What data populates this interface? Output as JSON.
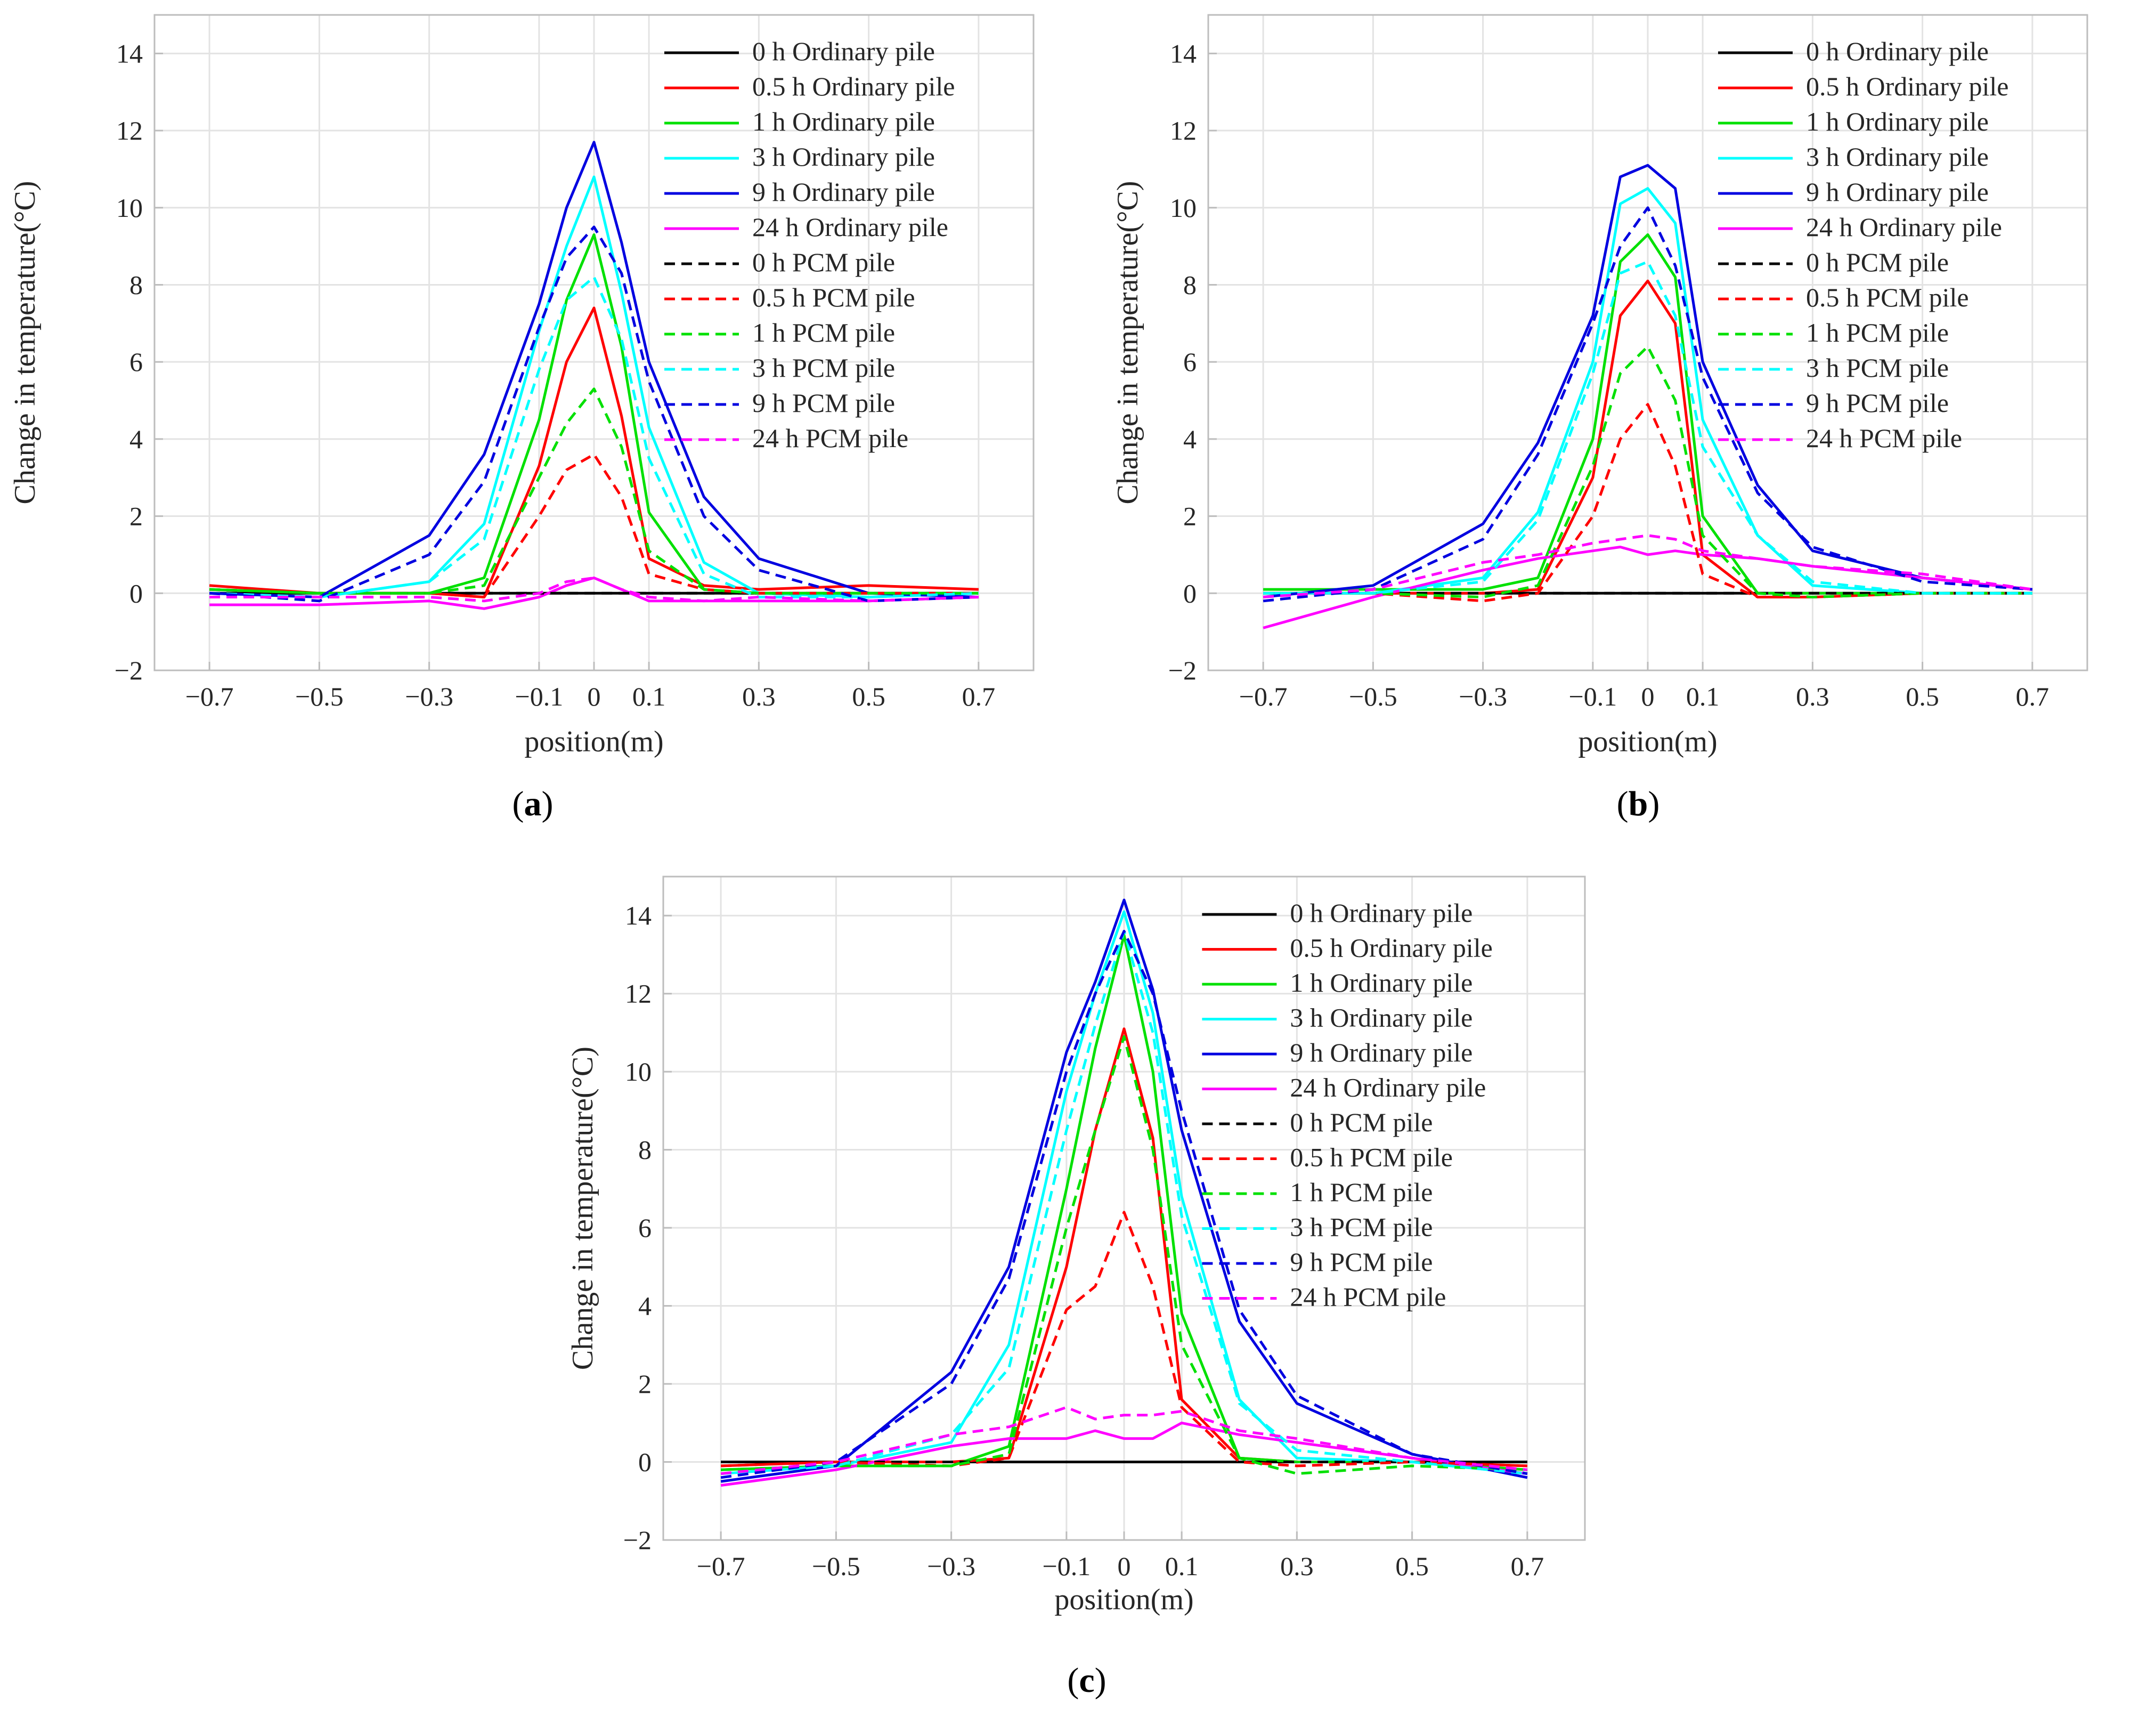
{
  "figure": {
    "captions": [
      {
        "open": "(",
        "letter": "a",
        "close": ")"
      },
      {
        "open": "(",
        "letter": "b",
        "close": ")"
      },
      {
        "open": "(",
        "letter": "c",
        "close": ")"
      }
    ],
    "colors": {
      "0 h": "#000000",
      "0.5 h": "#ff0000",
      "1 h": "#00e000",
      "3 h": "#00ffff",
      "9 h": "#0000e0",
      "24 h": "#ff00ff",
      "grid": "#e3e3e3",
      "axes": "#bdbdbd"
    }
  },
  "chart_data": [
    {
      "type": "line",
      "panel": "a",
      "xlabel": "position(m)",
      "ylabel": "Change in temperature(°C)",
      "xlim": [
        -0.8,
        0.8
      ],
      "ylim": [
        -2,
        15
      ],
      "xticks": [
        -0.7,
        -0.5,
        -0.3,
        -0.1,
        0,
        0.1,
        0.3,
        0.5,
        0.7
      ],
      "xtick_labels": [
        "−0.7",
        "−0.5",
        "−0.3",
        "−0.1",
        "0",
        "0.1",
        "0.3",
        "0.5",
        "0.7"
      ],
      "yticks": [
        -2,
        0,
        2,
        4,
        6,
        8,
        10,
        12,
        14
      ],
      "ytick_labels": [
        "−2",
        "0",
        "2",
        "4",
        "6",
        "8",
        "10",
        "12",
        "14"
      ],
      "grid": true,
      "legend": "top-right",
      "x": [
        -0.7,
        -0.5,
        -0.3,
        -0.2,
        -0.1,
        -0.05,
        0,
        0.05,
        0.1,
        0.2,
        0.3,
        0.5,
        0.7
      ],
      "series": [
        {
          "name": "0 h Ordinary pile",
          "color": "#000000",
          "style": "solid",
          "values": [
            0,
            0,
            0,
            0,
            0,
            0,
            0,
            0,
            0,
            0,
            0,
            0,
            0
          ]
        },
        {
          "name": "0.5 h Ordinary pile",
          "color": "#ff0000",
          "style": "solid",
          "values": [
            0.2,
            0,
            0,
            -0.1,
            3.3,
            6.0,
            7.4,
            4.6,
            0.9,
            0.2,
            0.1,
            0.2,
            0.1
          ]
        },
        {
          "name": "1 h Ordinary pile",
          "color": "#00e000",
          "style": "solid",
          "values": [
            0.1,
            0,
            0,
            0.4,
            4.5,
            7.6,
            9.3,
            6.4,
            2.1,
            0.1,
            0,
            0,
            0
          ]
        },
        {
          "name": "3 h Ordinary pile",
          "color": "#00ffff",
          "style": "solid",
          "values": [
            0,
            -0.1,
            0.3,
            1.8,
            6.8,
            9.0,
            10.8,
            7.8,
            4.3,
            0.8,
            0,
            -0.1,
            0
          ]
        },
        {
          "name": "9 h Ordinary pile",
          "color": "#0000e0",
          "style": "solid",
          "values": [
            0,
            -0.1,
            1.5,
            3.6,
            7.5,
            10.0,
            11.7,
            9.1,
            6.0,
            2.5,
            0.9,
            0,
            -0.1
          ]
        },
        {
          "name": "24 h Ordinary pile",
          "color": "#ff00ff",
          "style": "solid",
          "values": [
            -0.3,
            -0.3,
            -0.2,
            -0.4,
            -0.1,
            0.2,
            0.4,
            0.1,
            -0.2,
            -0.2,
            -0.2,
            -0.2,
            -0.1
          ]
        },
        {
          "name": "0 h PCM pile",
          "color": "#000000",
          "style": "dashed",
          "values": [
            0,
            0,
            0,
            0,
            0,
            0,
            0,
            0,
            0,
            0,
            0,
            0,
            0
          ]
        },
        {
          "name": "0.5 h PCM pile",
          "color": "#ff0000",
          "style": "dashed",
          "values": [
            0.1,
            0,
            0,
            -0.1,
            2.0,
            3.2,
            3.6,
            2.5,
            0.5,
            0.1,
            0,
            0,
            0
          ]
        },
        {
          "name": "1 h PCM pile",
          "color": "#00e000",
          "style": "dashed",
          "values": [
            0.1,
            0,
            0,
            0.2,
            3.0,
            4.4,
            5.3,
            3.8,
            1.1,
            0.1,
            0,
            0,
            0
          ]
        },
        {
          "name": "3 h PCM pile",
          "color": "#00ffff",
          "style": "dashed",
          "values": [
            0,
            -0.1,
            0.3,
            1.4,
            5.8,
            7.6,
            8.2,
            6.6,
            3.5,
            0.5,
            -0.1,
            -0.1,
            0
          ]
        },
        {
          "name": "9 h PCM pile",
          "color": "#0000e0",
          "style": "dashed",
          "values": [
            0,
            -0.2,
            1.0,
            2.9,
            6.9,
            8.7,
            9.5,
            8.3,
            5.5,
            2.0,
            0.6,
            -0.2,
            -0.1
          ]
        },
        {
          "name": "24 h PCM pile",
          "color": "#ff00ff",
          "style": "dashed",
          "values": [
            -0.1,
            -0.1,
            -0.1,
            -0.2,
            0,
            0.3,
            0.4,
            0.1,
            -0.1,
            -0.2,
            -0.1,
            -0.2,
            -0.1
          ]
        }
      ]
    },
    {
      "type": "line",
      "panel": "b",
      "xlabel": "position(m)",
      "ylabel": "Change in temperature(°C)",
      "xlim": [
        -0.8,
        0.8
      ],
      "ylim": [
        -2,
        15
      ],
      "xticks": [
        -0.7,
        -0.5,
        -0.3,
        -0.1,
        0,
        0.1,
        0.3,
        0.5,
        0.7
      ],
      "xtick_labels": [
        "−0.7",
        "−0.5",
        "−0.3",
        "−0.1",
        "0",
        "0.1",
        "0.3",
        "0.5",
        "0.7"
      ],
      "yticks": [
        -2,
        0,
        2,
        4,
        6,
        8,
        10,
        12,
        14
      ],
      "ytick_labels": [
        "−2",
        "0",
        "2",
        "4",
        "6",
        "8",
        "10",
        "12",
        "14"
      ],
      "grid": true,
      "legend": "top-right",
      "x": [
        -0.7,
        -0.5,
        -0.3,
        -0.2,
        -0.1,
        -0.05,
        0,
        0.05,
        0.1,
        0.2,
        0.3,
        0.5,
        0.7
      ],
      "series": [
        {
          "name": "0 h Ordinary pile",
          "color": "#000000",
          "style": "solid",
          "values": [
            0,
            0,
            0,
            0,
            0,
            0,
            0,
            0,
            0,
            0,
            0,
            0,
            0
          ]
        },
        {
          "name": "0.5 h Ordinary pile",
          "color": "#ff0000",
          "style": "solid",
          "values": [
            0,
            0,
            0,
            0.1,
            3.0,
            7.2,
            8.1,
            7.0,
            1.0,
            -0.1,
            -0.1,
            0,
            0
          ]
        },
        {
          "name": "1 h Ordinary pile",
          "color": "#00e000",
          "style": "solid",
          "values": [
            0.1,
            0.1,
            0.1,
            0.4,
            4.0,
            8.6,
            9.3,
            8.2,
            2.0,
            0,
            0,
            0,
            0
          ]
        },
        {
          "name": "3 h Ordinary pile",
          "color": "#00ffff",
          "style": "solid",
          "values": [
            0,
            0,
            0.4,
            2.1,
            6.0,
            10.1,
            10.5,
            9.6,
            4.5,
            1.5,
            0.2,
            0,
            0
          ]
        },
        {
          "name": "9 h Ordinary pile",
          "color": "#0000e0",
          "style": "solid",
          "values": [
            -0.1,
            0.2,
            1.8,
            3.9,
            7.2,
            10.8,
            11.1,
            10.5,
            6.0,
            2.8,
            1.1,
            0.4,
            0.1
          ]
        },
        {
          "name": "24 h Ordinary pile",
          "color": "#ff00ff",
          "style": "solid",
          "values": [
            -0.9,
            -0.1,
            0.6,
            0.9,
            1.1,
            1.2,
            1.0,
            1.1,
            1.0,
            0.9,
            0.7,
            0.4,
            0.1
          ]
        },
        {
          "name": "0 h PCM pile",
          "color": "#000000",
          "style": "dashed",
          "values": [
            0,
            0,
            0,
            0,
            0,
            0,
            0,
            0,
            0,
            0,
            0,
            0,
            0
          ]
        },
        {
          "name": "0.5 h PCM pile",
          "color": "#ff0000",
          "style": "dashed",
          "values": [
            0,
            0,
            -0.2,
            0,
            2.0,
            4.0,
            4.9,
            3.3,
            0.5,
            -0.1,
            -0.1,
            0,
            0
          ]
        },
        {
          "name": "1 h PCM pile",
          "color": "#00e000",
          "style": "dashed",
          "values": [
            0,
            0,
            -0.1,
            0.2,
            3.3,
            5.7,
            6.4,
            5.0,
            1.5,
            0,
            -0.1,
            0,
            0
          ]
        },
        {
          "name": "3 h PCM pile",
          "color": "#00ffff",
          "style": "dashed",
          "values": [
            0,
            0,
            0.3,
            1.9,
            5.7,
            8.3,
            8.6,
            7.2,
            3.8,
            1.5,
            0.3,
            0,
            0
          ]
        },
        {
          "name": "9 h PCM pile",
          "color": "#0000e0",
          "style": "dashed",
          "values": [
            -0.2,
            0.1,
            1.4,
            3.6,
            7.0,
            9.0,
            10.0,
            8.5,
            5.6,
            2.6,
            1.2,
            0.3,
            0.1
          ]
        },
        {
          "name": "24 h PCM pile",
          "color": "#ff00ff",
          "style": "dashed",
          "values": [
            -0.1,
            0.1,
            0.8,
            1.0,
            1.3,
            1.4,
            1.5,
            1.4,
            1.1,
            0.9,
            0.7,
            0.5,
            0.1
          ]
        }
      ]
    },
    {
      "type": "line",
      "panel": "c",
      "xlabel": "position(m)",
      "ylabel": "Change in temperature(°C)",
      "xlim": [
        -0.8,
        0.8
      ],
      "ylim": [
        -2,
        15
      ],
      "xticks": [
        -0.7,
        -0.5,
        -0.3,
        -0.1,
        0,
        0.1,
        0.3,
        0.5,
        0.7
      ],
      "xtick_labels": [
        "−0.7",
        "−0.5",
        "−0.3",
        "−0.1",
        "0",
        "0.1",
        "0.3",
        "0.5",
        "0.7"
      ],
      "yticks": [
        -2,
        0,
        2,
        4,
        6,
        8,
        10,
        12,
        14
      ],
      "ytick_labels": [
        "−2",
        "0",
        "2",
        "4",
        "6",
        "8",
        "10",
        "12",
        "14"
      ],
      "grid": true,
      "legend": "top-right",
      "x": [
        -0.7,
        -0.5,
        -0.3,
        -0.2,
        -0.1,
        -0.05,
        0,
        0.05,
        0.1,
        0.2,
        0.3,
        0.5,
        0.7
      ],
      "series": [
        {
          "name": "0 h Ordinary pile",
          "color": "#000000",
          "style": "solid",
          "values": [
            0,
            0,
            0,
            0,
            0,
            0,
            0,
            0,
            0,
            0,
            0,
            0,
            0
          ]
        },
        {
          "name": "0.5 h Ordinary pile",
          "color": "#ff0000",
          "style": "solid",
          "values": [
            -0.1,
            0,
            0,
            0.1,
            5.0,
            8.5,
            11.1,
            8.3,
            1.6,
            0.1,
            0,
            0,
            -0.1
          ]
        },
        {
          "name": "1 h Ordinary pile",
          "color": "#00e000",
          "style": "solid",
          "values": [
            -0.2,
            -0.1,
            -0.1,
            0.4,
            7.0,
            10.6,
            13.5,
            10.0,
            3.8,
            0.1,
            0,
            0,
            -0.2
          ]
        },
        {
          "name": "3 h Ordinary pile",
          "color": "#00ffff",
          "style": "solid",
          "values": [
            -0.3,
            -0.1,
            0.5,
            3.0,
            9.5,
            12.0,
            14.1,
            11.5,
            6.8,
            1.6,
            0.1,
            0,
            -0.3
          ]
        },
        {
          "name": "9 h Ordinary pile",
          "color": "#0000e0",
          "style": "solid",
          "values": [
            -0.5,
            -0.1,
            2.3,
            5.0,
            10.5,
            12.3,
            14.4,
            12.1,
            8.5,
            3.6,
            1.5,
            0.2,
            -0.4
          ]
        },
        {
          "name": "24 h Ordinary pile",
          "color": "#ff00ff",
          "style": "solid",
          "values": [
            -0.6,
            -0.2,
            0.4,
            0.6,
            0.6,
            0.8,
            0.6,
            0.6,
            1.0,
            0.7,
            0.5,
            0.1,
            -0.3
          ]
        },
        {
          "name": "0 h PCM pile",
          "color": "#000000",
          "style": "dashed",
          "values": [
            0,
            0,
            0,
            0,
            0,
            0,
            0,
            0,
            0,
            0,
            0,
            0,
            0
          ]
        },
        {
          "name": "0.5 h PCM pile",
          "color": "#ff0000",
          "style": "dashed",
          "values": [
            -0.1,
            0,
            -0.1,
            0.1,
            3.9,
            4.5,
            6.4,
            4.5,
            1.4,
            0,
            -0.1,
            0,
            -0.1
          ]
        },
        {
          "name": "1 h PCM pile",
          "color": "#00e000",
          "style": "dashed",
          "values": [
            -0.2,
            -0.1,
            -0.1,
            0.2,
            6.0,
            8.5,
            10.9,
            8.0,
            3.0,
            0.1,
            -0.3,
            -0.1,
            -0.2
          ]
        },
        {
          "name": "3 h PCM pile",
          "color": "#00ffff",
          "style": "dashed",
          "values": [
            -0.3,
            -0.1,
            0.7,
            2.4,
            8.5,
            11.2,
            13.6,
            11.0,
            6.3,
            1.5,
            0.3,
            0,
            -0.3
          ]
        },
        {
          "name": "9 h PCM pile",
          "color": "#0000e0",
          "style": "dashed",
          "values": [
            -0.4,
            0,
            2.0,
            4.7,
            10.0,
            12.0,
            13.6,
            12.0,
            9.0,
            3.9,
            1.7,
            0.2,
            -0.3
          ]
        },
        {
          "name": "24 h PCM pile",
          "color": "#ff00ff",
          "style": "dashed",
          "values": [
            -0.3,
            0,
            0.7,
            0.9,
            1.4,
            1.1,
            1.2,
            1.2,
            1.3,
            0.8,
            0.6,
            0.1,
            -0.2
          ]
        }
      ]
    }
  ]
}
